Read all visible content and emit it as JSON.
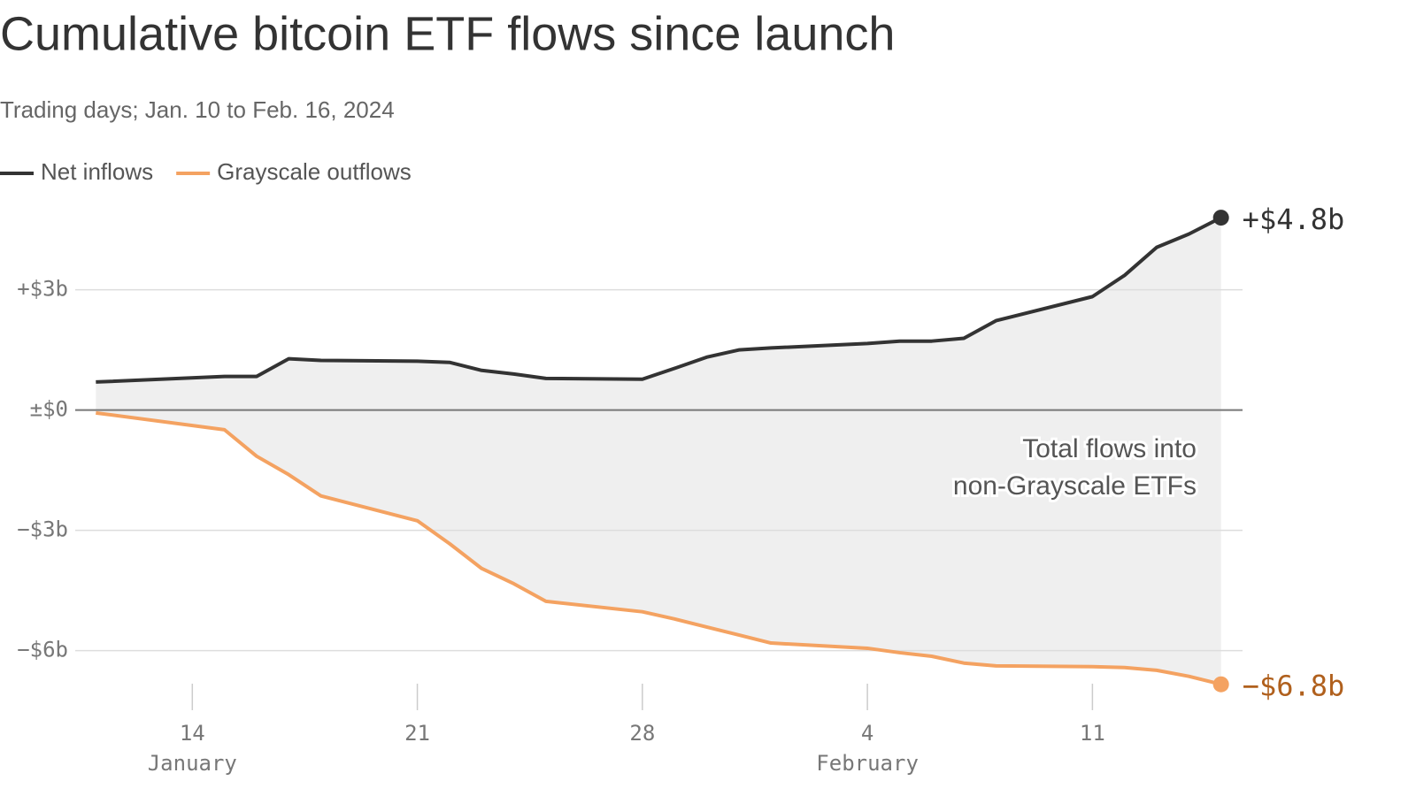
{
  "chart_data": {
    "type": "line",
    "title": "Cumulative bitcoin ETF flows since launch",
    "subtitle": "Trading days; Jan. 10 to Feb. 16, 2024",
    "x": [
      "2024-01-11",
      "2024-01-15",
      "2024-01-16",
      "2024-01-17",
      "2024-01-18",
      "2024-01-21",
      "2024-01-22",
      "2024-01-23",
      "2024-01-24",
      "2024-01-25",
      "2024-01-28",
      "2024-01-29",
      "2024-01-30",
      "2024-01-31",
      "2024-02-01",
      "2024-02-04",
      "2024-02-05",
      "2024-02-06",
      "2024-02-07",
      "2024-02-08",
      "2024-02-11",
      "2024-02-12",
      "2024-02-13",
      "2024-02-14",
      "2024-02-15"
    ],
    "series": [
      {
        "name": "Net inflows",
        "color": "#333333",
        "end_label": "+$4.8b",
        "values": [
          0.7,
          0.84,
          0.84,
          1.28,
          1.24,
          1.22,
          1.19,
          0.99,
          0.9,
          0.79,
          0.77,
          1.04,
          1.32,
          1.5,
          1.55,
          1.66,
          1.72,
          1.72,
          1.79,
          2.23,
          2.83,
          3.36,
          4.06,
          4.39,
          4.8
        ]
      },
      {
        "name": "Grayscale outflows",
        "color": "#f4a261",
        "end_label": "−$6.8b",
        "end_label_color": "#b0601d",
        "values": [
          -0.07,
          -0.49,
          -1.15,
          -1.61,
          -2.14,
          -2.76,
          -3.33,
          -3.95,
          -4.33,
          -4.77,
          -5.03,
          -5.21,
          -5.41,
          -5.61,
          -5.81,
          -5.94,
          -6.05,
          -6.14,
          -6.31,
          -6.38,
          -6.4,
          -6.42,
          -6.49,
          -6.64,
          -6.84
        ]
      }
    ],
    "xlim": [
      "2024-01-10",
      "2024-02-16"
    ],
    "xticks": [
      {
        "value": "2024-01-14",
        "label": "14"
      },
      {
        "value": "2024-01-21",
        "label": "21"
      },
      {
        "value": "2024-01-28",
        "label": "28"
      },
      {
        "value": "2024-02-04",
        "label": "4"
      },
      {
        "value": "2024-02-11",
        "label": "11"
      }
    ],
    "xtick_groups": [
      {
        "value": "2024-01-14",
        "label": "January"
      },
      {
        "value": "2024-02-04",
        "label": "February"
      }
    ],
    "ylim": [
      -7,
      5
    ],
    "yticks": [
      {
        "value": 3,
        "label": "+$3b"
      },
      {
        "value": 0,
        "label": "±$0"
      },
      {
        "value": -3,
        "label": "−$3b"
      },
      {
        "value": -6,
        "label": "−$6b"
      }
    ],
    "grid": true,
    "fill_between": true,
    "annotation": [
      "Total flows into",
      "non-Grayscale ETFs"
    ]
  }
}
